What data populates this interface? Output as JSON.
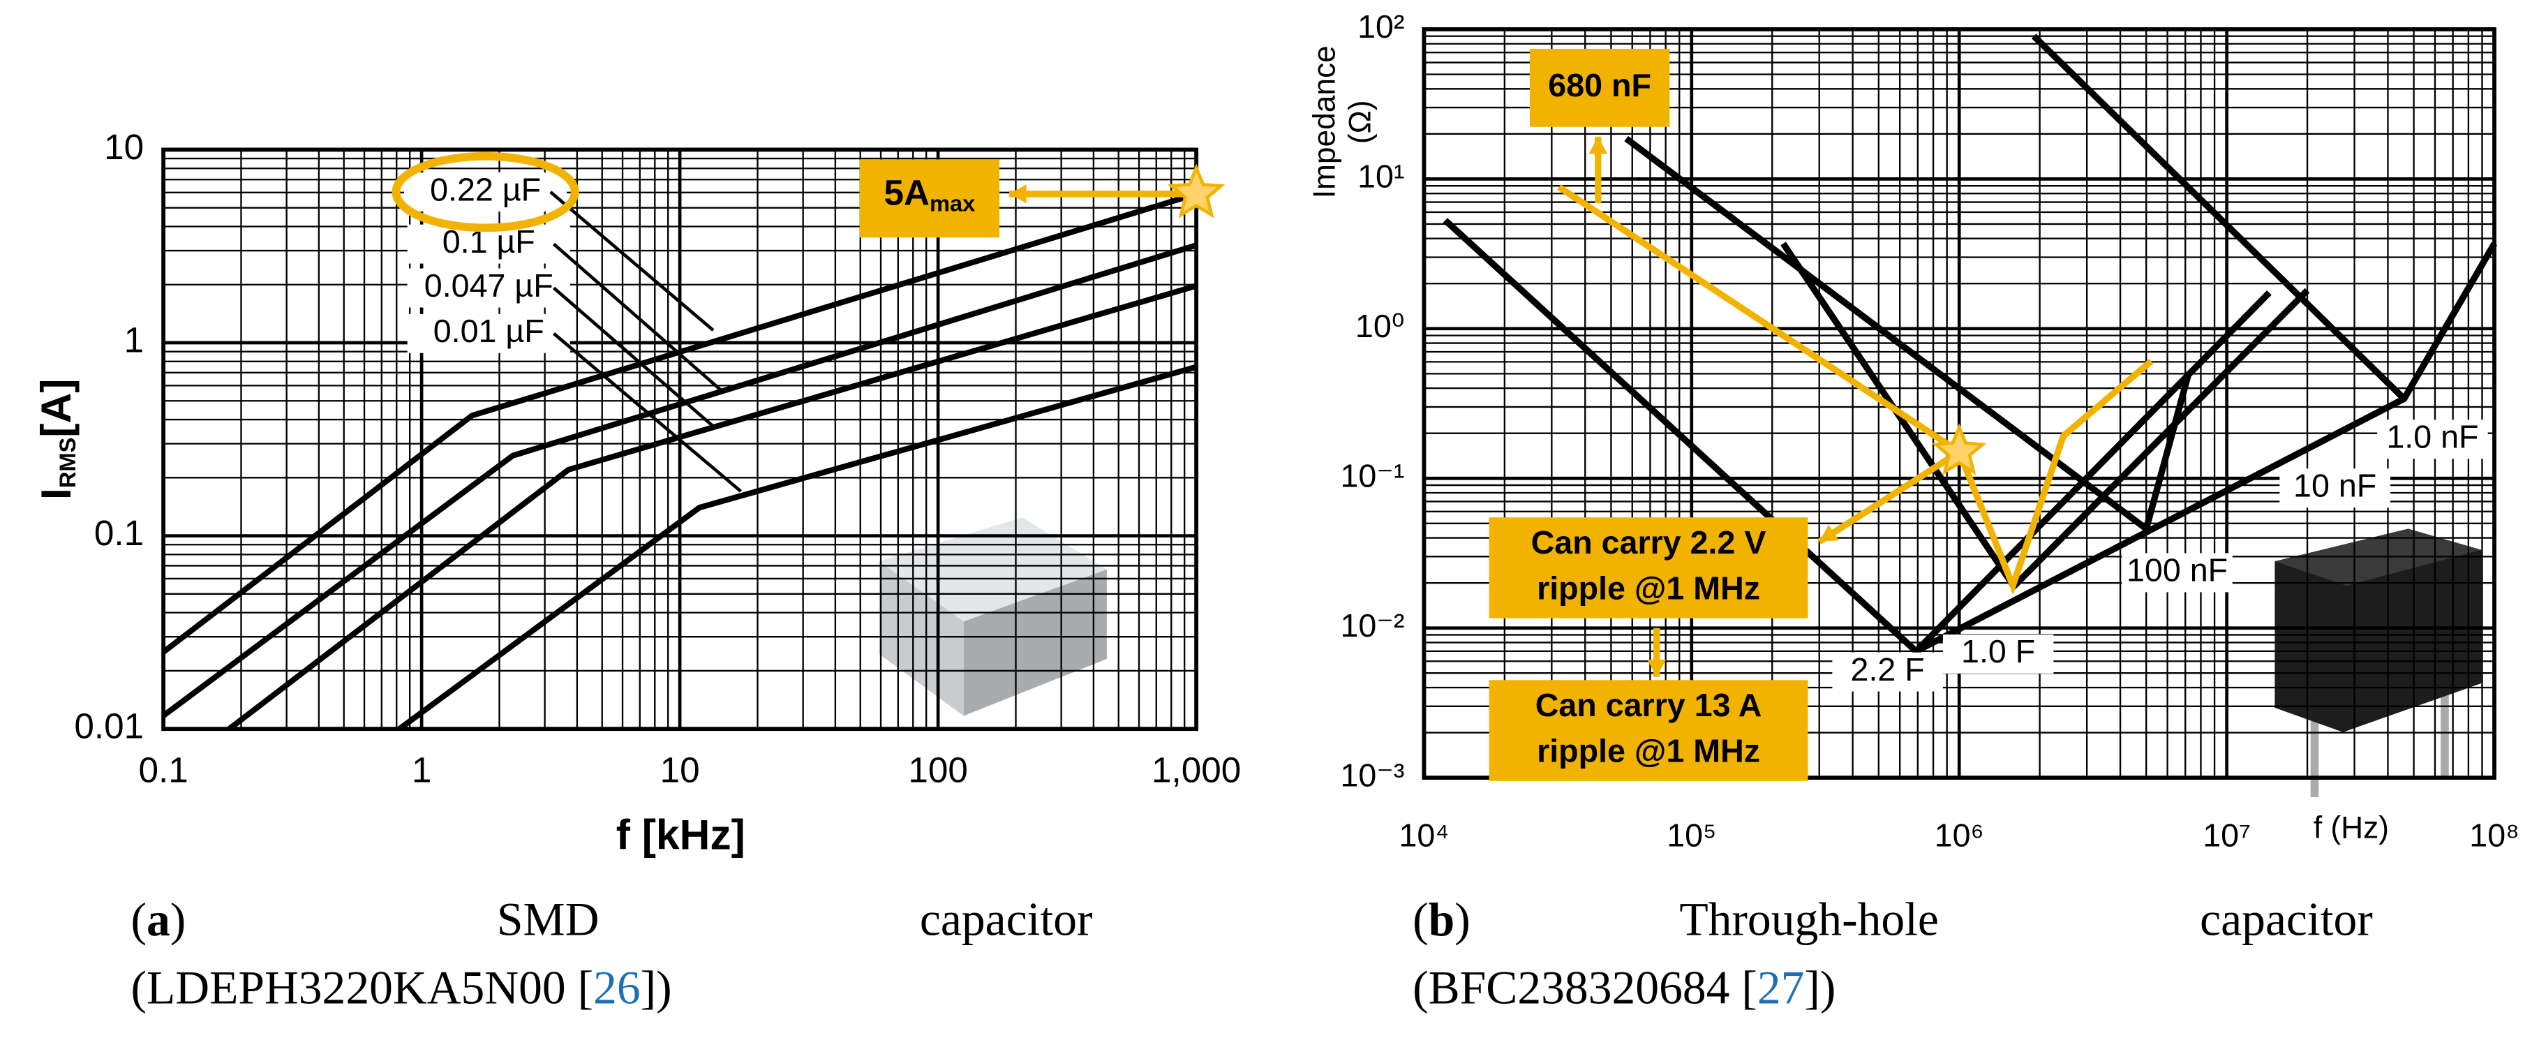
{
  "chart_data": [
    {
      "type": "line",
      "xscale": "log",
      "yscale": "log",
      "grid": true,
      "minor_grid": true,
      "xlim": [
        0.1,
        1000
      ],
      "ylim": [
        0.01,
        10
      ],
      "xticks": [
        0.1,
        1,
        10,
        100,
        {
          "value": 1000,
          "label": "1,000"
        }
      ],
      "yticks": [
        0.01,
        0.1,
        1,
        10
      ],
      "x_label": "f [kHz]",
      "y_label": {
        "symbol": "I",
        "sub": "RMS",
        "unit": "[A]"
      },
      "series": [
        {
          "name": "0.22 µF",
          "color": "#000000",
          "x": [
            0.1,
            1.57,
            1000
          ],
          "values": [
            0.025,
            0.42,
            5.9
          ]
        },
        {
          "name": "0.1 µF",
          "color": "#000000",
          "x": [
            0.1,
            2.25,
            1000
          ],
          "values": [
            0.0117,
            0.26,
            3.2
          ]
        },
        {
          "name": "0.047 µF",
          "color": "#000000",
          "x": [
            0.18,
            3.7,
            1000
          ],
          "values": [
            0.01,
            0.22,
            1.97
          ]
        },
        {
          "name": "0.01 µF",
          "color": "#000000",
          "x": [
            0.82,
            11.9,
            1000
          ],
          "values": [
            0.01,
            0.14,
            0.75
          ]
        }
      ],
      "annotation": {
        "text": "5A",
        "sub": "max",
        "x": 1000,
        "y": 5.9,
        "color": "#f2b300"
      }
    },
    {
      "type": "line",
      "xscale": "log",
      "yscale": "log",
      "grid": true,
      "minor_grid": true,
      "xlim": [
        10000,
        100000000
      ],
      "ylim": [
        0.001,
        100
      ],
      "xticks": [
        {
          "value": 10000,
          "label": "10⁴"
        },
        {
          "value": 100000,
          "label": "10⁵"
        },
        {
          "value": 1000000,
          "label": "10⁶"
        },
        {
          "value": 10000000,
          "label": "10⁷"
        },
        {
          "value": 100000000,
          "label": "10⁸"
        }
      ],
      "yticks": [
        {
          "value": 0.001,
          "label": "10⁻³"
        },
        {
          "value": 0.01,
          "label": "10⁻²"
        },
        {
          "value": 0.1,
          "label": "10⁻¹"
        },
        {
          "value": 1,
          "label": "10⁰"
        },
        {
          "value": 10,
          "label": "10¹"
        },
        {
          "value": 100,
          "label": "10²"
        }
      ],
      "x_label": "f (Hz)",
      "y_label": [
        "Impedance",
        "(Ω)"
      ],
      "series": [
        {
          "color": "#000000",
          "x": [
            12000,
            690000,
            14400000
          ],
          "values": [
            5.3,
            0.007,
            1.74
          ]
        },
        {
          "color": "#000000",
          "x": [
            220000,
            1600000,
            20000000
          ],
          "values": [
            3.7,
            0.019,
            1.8
          ]
        },
        {
          "color": "#000000",
          "x": [
            57000,
            5000000,
            7200000
          ],
          "values": [
            18.6,
            0.046,
            0.5
          ]
        },
        {
          "color": "#000000",
          "x": [
            1900000,
            46000000,
            100000000
          ],
          "values": [
            90,
            0.34,
            3.7
          ]
        },
        {
          "color": "#000000",
          "x": [
            690000,
            46000000
          ],
          "values": [
            0.007,
            0.34
          ]
        }
      ],
      "curve_labels": [
        "2.2 F",
        "1.0 F",
        "100 nF",
        "10 nF",
        "1.0 nF"
      ],
      "marker": {
        "x": 1000000,
        "y": 0.15,
        "color": "#f2b300"
      },
      "annotations": [
        {
          "lines": [
            "680 nF"
          ]
        },
        {
          "lines": [
            "Can carry 2.2 V",
            "ripple @1 MHz"
          ]
        },
        {
          "lines": [
            "Can carry 13 A",
            "ripple @1 MHz"
          ]
        }
      ]
    }
  ],
  "captions": [
    {
      "tag_open": "(",
      "tag": "a",
      "tag_close": ")",
      "words": [
        "SMD",
        "capacitor"
      ],
      "detail": "(LDEPH3220KA5N00 [",
      "ref": "26",
      "detail_end": "])"
    },
    {
      "tag_open": "(",
      "tag": "b",
      "tag_close": ")",
      "words": [
        "Through-hole",
        "capacitor"
      ],
      "detail": "(BFC238320684 [",
      "ref": "27",
      "detail_end": "])"
    }
  ]
}
